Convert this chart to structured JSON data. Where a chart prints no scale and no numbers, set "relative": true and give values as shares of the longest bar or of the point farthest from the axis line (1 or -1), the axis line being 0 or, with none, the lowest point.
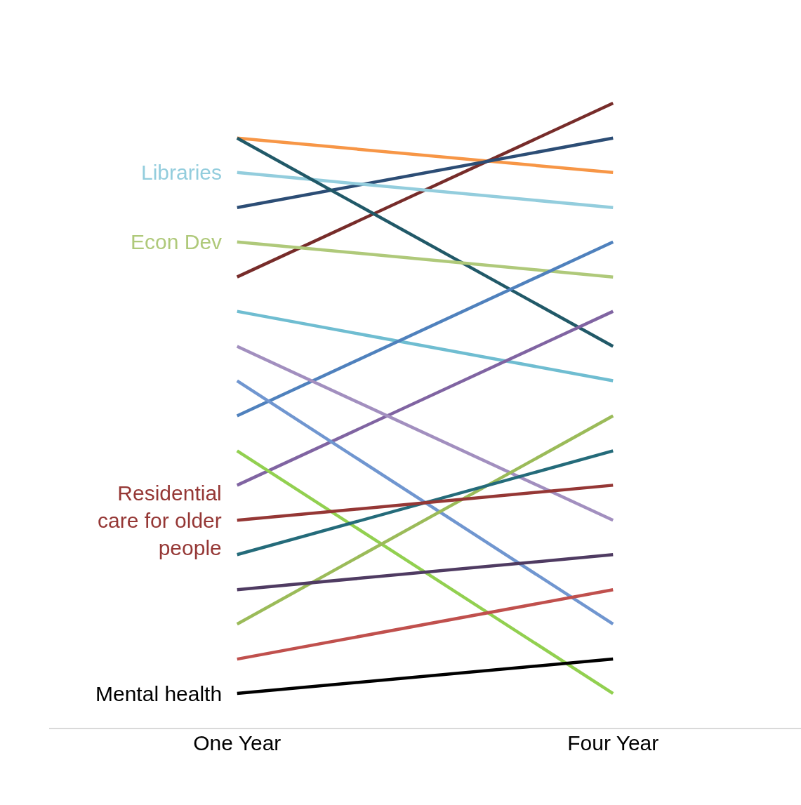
{
  "chart_data": {
    "type": "line",
    "relative": true,
    "legend": false,
    "marker": "none",
    "grid": false,
    "categories": [
      "One Year",
      "Four Year"
    ],
    "series": [
      {
        "color": "#f79646",
        "values": [
          0.944,
          0.889
        ]
      },
      {
        "color": "#772c2a",
        "values": [
          0.722,
          1
        ]
      },
      {
        "color": "#2c4d75",
        "values": [
          0.833,
          0.944
        ]
      },
      {
        "name": "Libraries",
        "color": "#93cddd",
        "values": [
          0.889,
          0.833
        ]
      },
      {
        "color": "#215968",
        "values": [
          0.944,
          0.611
        ]
      },
      {
        "name": "Econ Dev",
        "color": "#afc97a",
        "values": [
          0.778,
          0.722
        ]
      },
      {
        "color": "#6fbdd1",
        "values": [
          0.667,
          0.556
        ]
      },
      {
        "color": "#4f81bd",
        "values": [
          0.5,
          0.778
        ]
      },
      {
        "color": "#8064a2",
        "values": [
          0.389,
          0.667
        ]
      },
      {
        "color": "#a28fbf",
        "values": [
          0.611,
          0.333
        ]
      },
      {
        "color": "#7096d0",
        "values": [
          0.556,
          0.167
        ]
      },
      {
        "color": "#92d050",
        "values": [
          0.444,
          0.056
        ]
      },
      {
        "color": "#9bbb59",
        "values": [
          0.167,
          0.5
        ]
      },
      {
        "color": "#246b7a",
        "values": [
          0.278,
          0.444
        ]
      },
      {
        "name": "Residential care for older people",
        "color": "#953735",
        "values": [
          0.333,
          0.389
        ]
      },
      {
        "color": "#4f3b62",
        "values": [
          0.222,
          0.278
        ]
      },
      {
        "color": "#c0504d",
        "values": [
          0.111,
          0.222
        ]
      },
      {
        "name": "Mental health",
        "color": "#000000",
        "values": [
          0.056,
          0.111
        ]
      }
    ]
  }
}
